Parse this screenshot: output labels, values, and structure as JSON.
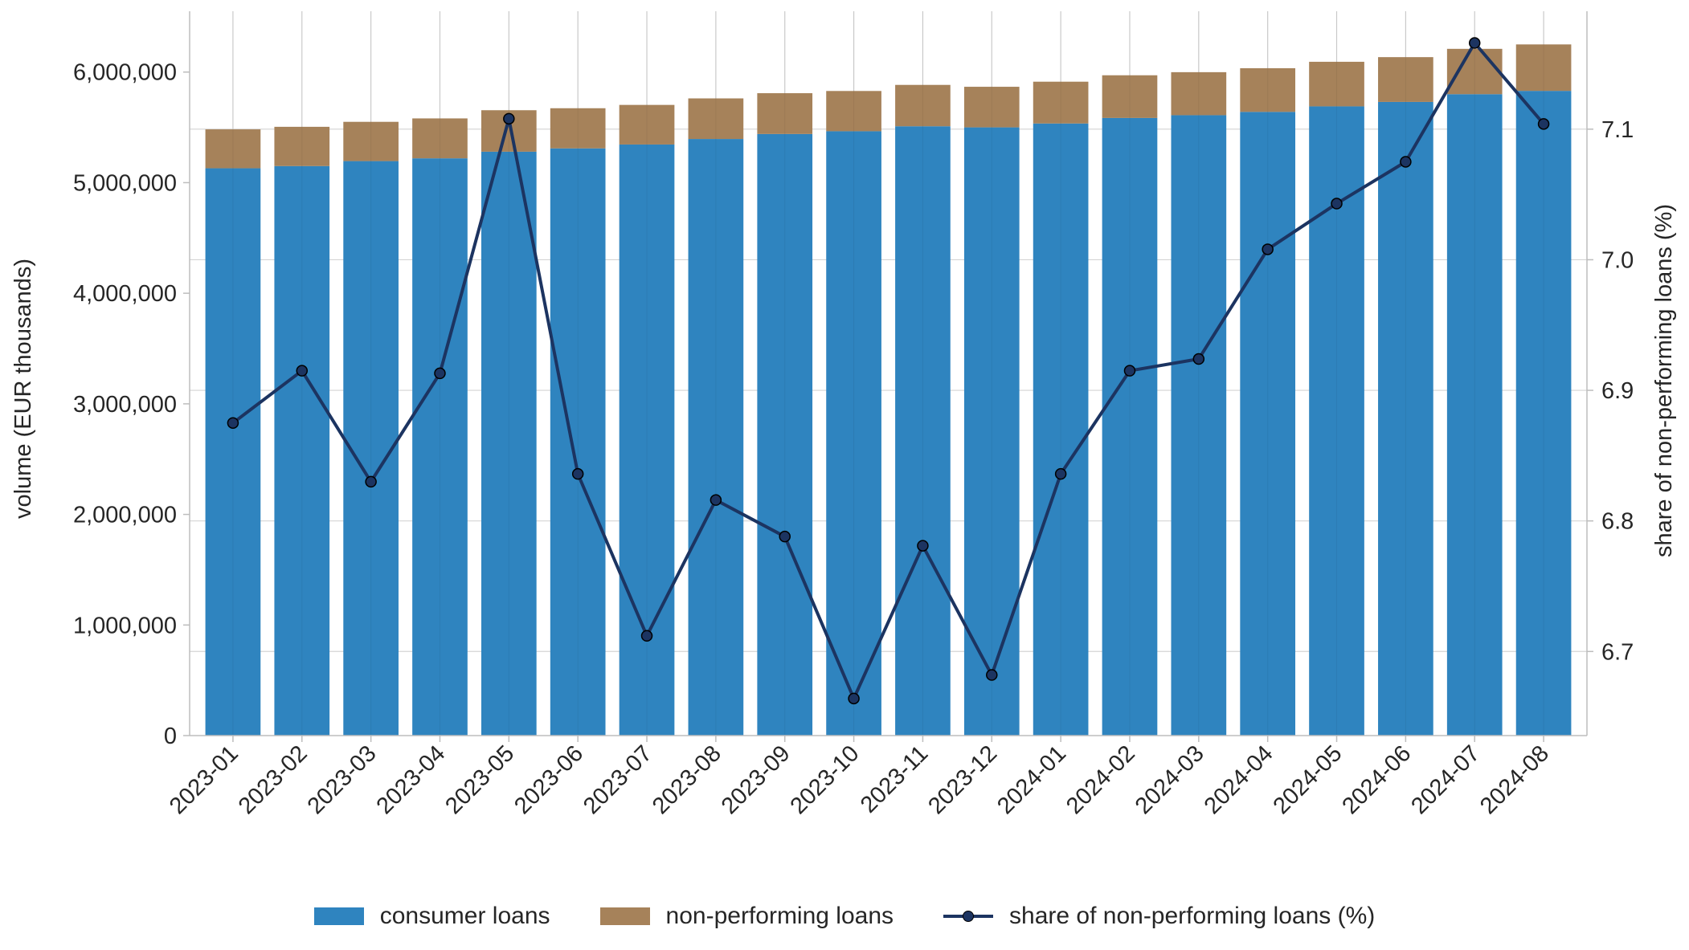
{
  "chart_data": {
    "type": "bar",
    "categories": [
      "2023-01",
      "2023-02",
      "2023-03",
      "2023-04",
      "2023-05",
      "2023-06",
      "2023-07",
      "2023-08",
      "2023-09",
      "2023-10",
      "2023-11",
      "2023-12",
      "2024-01",
      "2024-02",
      "2024-03",
      "2024-04",
      "2024-05",
      "2024-06",
      "2024-07",
      "2024-08"
    ],
    "series": [
      {
        "name": "consumer loans",
        "kind": "stacked-bar",
        "axis": "left",
        "color": "#2f84bf",
        "values": [
          5130000,
          5150000,
          5195000,
          5220000,
          5280000,
          5310000,
          5345000,
          5395000,
          5440000,
          5465000,
          5510000,
          5500000,
          5535000,
          5585000,
          5610000,
          5640000,
          5690000,
          5730000,
          5800000,
          5830000
        ]
      },
      {
        "name": "non-performing loans",
        "kind": "stacked-bar",
        "axis": "left",
        "color": "#a6825a",
        "values": [
          352000,
          355000,
          355000,
          361000,
          375000,
          363000,
          358000,
          367000,
          369000,
          364000,
          374000,
          367000,
          378000,
          386000,
          389000,
          395000,
          403000,
          405000,
          410000,
          420000
        ]
      },
      {
        "name": "share of non-performing loans (%)",
        "kind": "line",
        "axis": "right",
        "color": "#1c3461",
        "values": [
          6.875,
          6.915,
          6.83,
          6.913,
          7.108,
          6.836,
          6.712,
          6.816,
          6.788,
          6.664,
          6.781,
          6.682,
          6.836,
          6.915,
          6.924,
          7.008,
          7.043,
          7.075,
          7.166,
          7.104
        ]
      }
    ],
    "ylabel": "volume (EUR thousands)",
    "y2label": "share of non-performing loans (%)",
    "ylim": [
      0,
      6550000
    ],
    "y2lim": [
      6.6356,
      7.1903
    ],
    "yticks": [
      0,
      1000000,
      2000000,
      3000000,
      4000000,
      5000000,
      6000000
    ],
    "ytick_labels": [
      "0",
      "1,000,000",
      "2,000,000",
      "3,000,000",
      "4,000,000",
      "5,000,000",
      "6,000,000"
    ],
    "y2ticks": [
      6.7,
      6.8,
      6.9,
      7.0,
      7.1
    ],
    "y2tick_labels": [
      "6.7",
      "6.8",
      "6.9",
      "7.0",
      "7.1"
    ],
    "grid": true,
    "legend_position": "bottom-center"
  }
}
